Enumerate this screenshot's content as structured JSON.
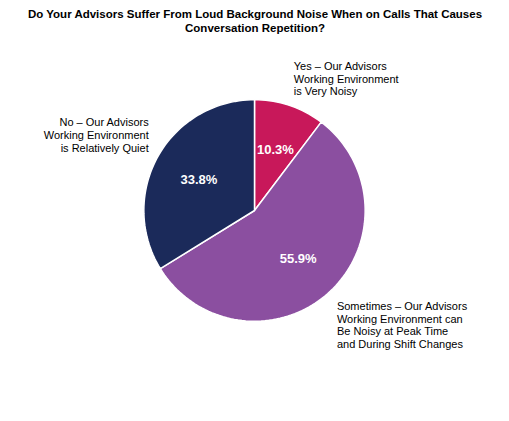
{
  "chart_data": {
    "type": "pie",
    "title": "Do Your Advisors Suffer From Loud Background Noise When on Calls That Causes\nConversation Repetition?",
    "categories": [
      "Yes – Our Advisors\nWorking Environment\nis Very Noisy",
      "Sometimes – Our Advisors\nWorking Environment can\nBe Noisy at Peak Time\nand During Shift Changes",
      "No – Our Advisors\nWorking Environment\nis Relatively Quiet"
    ],
    "values": [
      10.3,
      55.9,
      33.8
    ],
    "value_labels": [
      "10.3%",
      "55.9%",
      "33.8%"
    ],
    "colors": [
      "#C8185A",
      "#8B4FA0",
      "#1B2A5A"
    ],
    "data_labels": true
  }
}
